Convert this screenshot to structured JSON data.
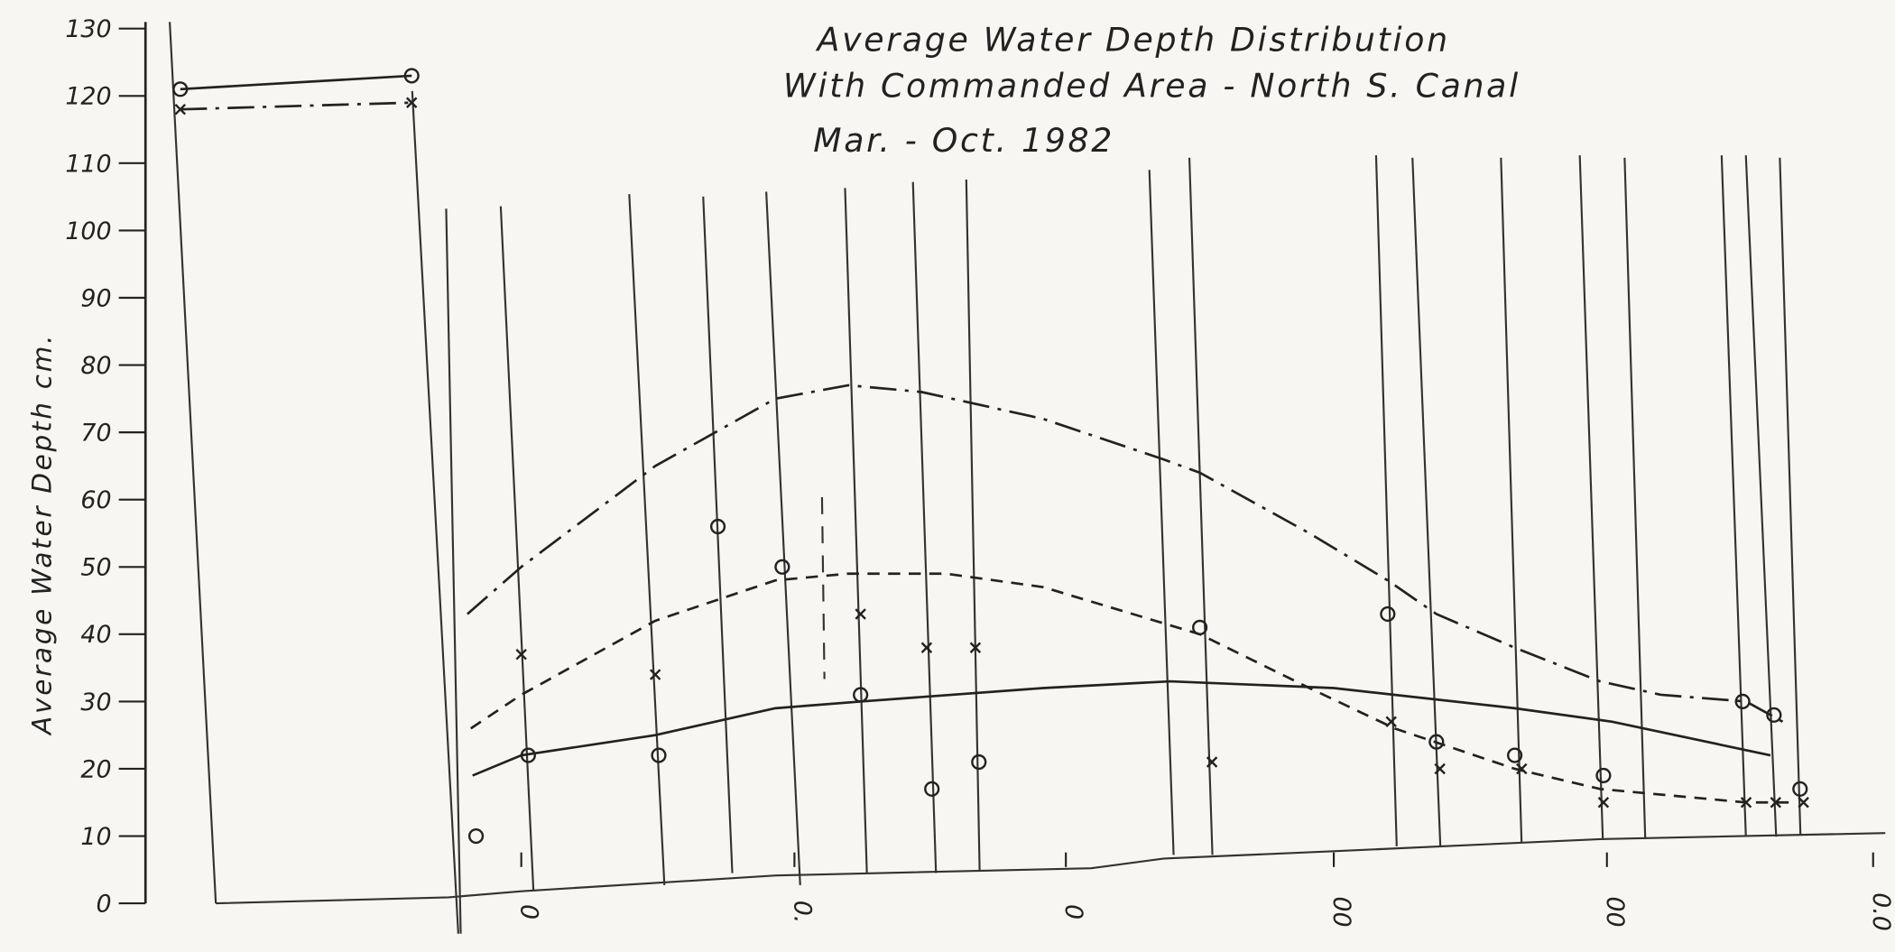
{
  "chart_data": {
    "type": "line",
    "title": [
      "Average Water Depth Distribution",
      "With Commanded Area - North S. Canal",
      "Mar. - Oct. 1982"
    ],
    "ylabel": "Average Water Depth cm.",
    "ylim": [
      0,
      130
    ],
    "yticks": [
      0,
      10,
      20,
      30,
      40,
      50,
      60,
      70,
      80,
      90,
      100,
      110,
      120,
      130
    ],
    "xlim": [
      0,
      100
    ],
    "xticks": [
      {
        "value": 21.6,
        "label": "0"
      },
      {
        "value": 37.3,
        "label": "0."
      },
      {
        "value": 52.9,
        "label": "0"
      },
      {
        "value": 68.3,
        "label": "00"
      },
      {
        "value": 84.0,
        "label": "00"
      },
      {
        "value": 99.3,
        "label": "0.0"
      }
    ],
    "color": "#222222",
    "series": [
      {
        "style": "dashdot",
        "x": [
          18.5,
          21.6,
          29.3,
          36.2,
          40.4,
          44.6,
          51.6,
          58.5,
          60.6,
          66.9,
          71.4,
          74.2,
          78.7,
          83.6,
          87.1,
          92.0,
          94.1
        ],
        "values": [
          43,
          50,
          65,
          75,
          77,
          76,
          72,
          66,
          64,
          55,
          48,
          43,
          38,
          33,
          31,
          30,
          27
        ]
      },
      {
        "style": "dashed",
        "x": [
          18.7,
          21.6,
          29.3,
          36.2,
          40.4,
          46.0,
          51.6,
          60.6,
          66.9,
          71.8,
          78.7,
          83.6,
          92.0,
          94.8
        ],
        "values": [
          26,
          31,
          42,
          48,
          49,
          49,
          47,
          40,
          32,
          26,
          20,
          17,
          15,
          15
        ]
      },
      {
        "style": "solid",
        "x": [
          18.8,
          21.6,
          29.3,
          36.2,
          41.1,
          51.6,
          58.9,
          68.3,
          78.7,
          84.3,
          93.4
        ],
        "values": [
          19,
          22,
          25,
          29,
          30,
          32,
          33,
          32,
          29,
          27,
          22
        ]
      },
      {
        "style": "solid",
        "marker": "circle",
        "x": [
          2.0,
          15.3
        ],
        "values": [
          121,
          123
        ]
      },
      {
        "style": "dashdot",
        "marker": "x",
        "x": [
          2.0,
          15.3
        ],
        "values": [
          118,
          119
        ]
      },
      {
        "marker": "circle",
        "x": [
          19.0,
          22.0,
          29.5,
          32.9,
          36.6,
          41.1,
          45.2,
          47.9,
          60.6,
          71.4,
          74.2,
          78.7,
          83.8,
          91.8,
          93.6,
          95.1
        ],
        "values": [
          10,
          22,
          22,
          56,
          50,
          31,
          17,
          21,
          41,
          43,
          24,
          22,
          19,
          30,
          28,
          17
        ]
      },
      {
        "marker": "x",
        "x": [
          21.6,
          29.3,
          41.1,
          44.9,
          47.7,
          61.3,
          71.6,
          74.4,
          79.1,
          83.8,
          92.0,
          93.7,
          95.3
        ],
        "values": [
          37,
          34,
          43,
          38,
          38,
          21,
          27,
          20,
          20,
          15,
          15,
          15,
          15
        ]
      }
    ]
  }
}
